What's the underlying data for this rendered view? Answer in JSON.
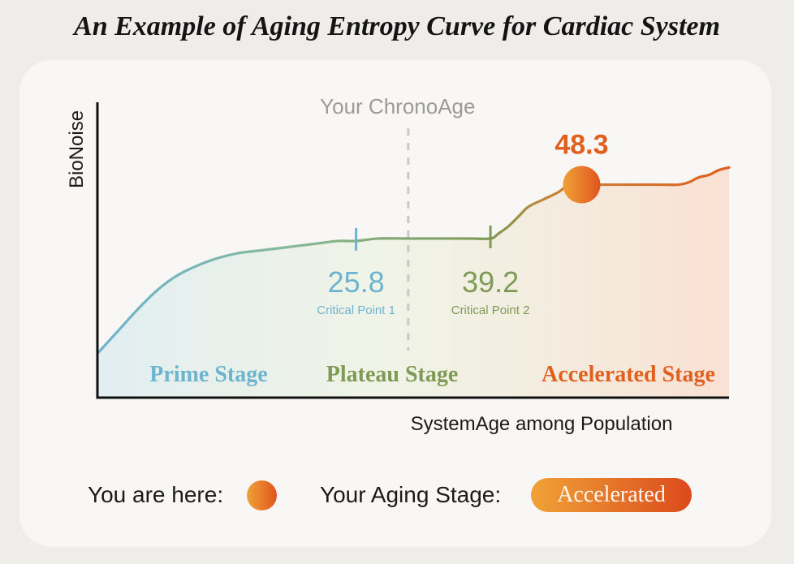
{
  "title": "An Example of Aging Entropy Curve for Cardiac System",
  "legend": {
    "you_are_here_label": "You are here:",
    "you_are_here_marker": "orange-gradient-circle",
    "aging_stage_label": "Your Aging Stage:",
    "aging_stage_value": "Accelerated"
  },
  "colors": {
    "prime": "#6cb4cf",
    "plateau": "#7f9a55",
    "accelerated": "#e0601f",
    "marker_start": "#f0a237",
    "marker_end": "#e0551f",
    "chronoage_line": "#c8c8c8"
  },
  "chart_data": {
    "type": "line",
    "title": "",
    "xlabel": "SystemAge among Population",
    "ylabel": "BioNoise",
    "ticks_shown": false,
    "grid": false,
    "chronoage_label": "Your ChronoAge",
    "curve": [
      [
        0,
        0.18
      ],
      [
        2,
        0.27
      ],
      [
        4,
        0.36
      ],
      [
        6,
        0.44
      ],
      [
        8,
        0.5
      ],
      [
        10,
        0.54
      ],
      [
        12,
        0.57
      ],
      [
        14,
        0.59
      ],
      [
        16,
        0.6
      ],
      [
        18,
        0.61
      ],
      [
        20,
        0.62
      ],
      [
        22,
        0.63
      ],
      [
        24,
        0.64
      ],
      [
        25.8,
        0.64
      ],
      [
        28,
        0.65
      ],
      [
        31,
        0.65
      ],
      [
        34,
        0.65
      ],
      [
        37,
        0.65
      ],
      [
        39.2,
        0.65
      ],
      [
        40,
        0.67
      ],
      [
        41,
        0.7
      ],
      [
        42,
        0.74
      ],
      [
        43,
        0.78
      ],
      [
        44.5,
        0.81
      ],
      [
        46,
        0.84
      ],
      [
        47,
        0.87
      ],
      [
        48.3,
        0.87
      ],
      [
        52,
        0.87
      ],
      [
        56,
        0.87
      ],
      [
        58,
        0.87
      ],
      [
        59,
        0.88
      ],
      [
        60,
        0.9
      ],
      [
        61,
        0.91
      ],
      [
        62,
        0.93
      ],
      [
        63,
        0.94
      ]
    ],
    "critical_points": [
      {
        "x": 25.8,
        "label": "25.8",
        "caption": "Critical Point 1",
        "color": "#6cb4cf"
      },
      {
        "x": 39.2,
        "label": "39.2",
        "caption": "Critical Point 2",
        "color": "#7f9a55"
      }
    ],
    "you_are_here": {
      "x": 48.3,
      "label": "48.3"
    },
    "chronoage_x": 31,
    "stages": [
      {
        "name": "Prime Stage",
        "color": "#6cb4cf"
      },
      {
        "name": "Plateau Stage",
        "color": "#7f9a55"
      },
      {
        "name": "Accelerated Stage",
        "color": "#e0601f"
      }
    ],
    "xlim": [
      0,
      63
    ],
    "ylim": [
      0,
      1.2
    ]
  }
}
